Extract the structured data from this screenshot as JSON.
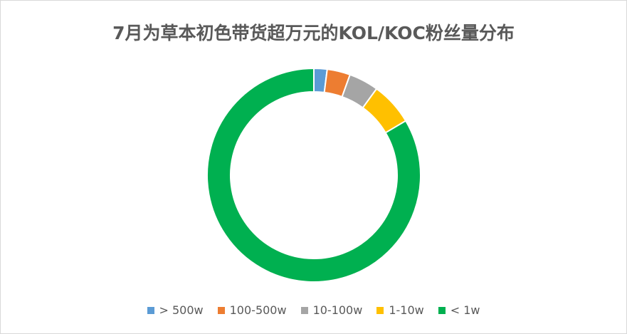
{
  "chart_data": {
    "type": "pie",
    "subtype": "donut",
    "title": "7月为草本初色带货超万元的KOL/KOC粉丝量分布",
    "categories": [
      "> 500w",
      "100-500w",
      "10-100w",
      "1-10w",
      "< 1w"
    ],
    "values": [
      2.0,
      3.5,
      4.5,
      6.5,
      83.5
    ],
    "colors": [
      "#5b9bd5",
      "#ed7d31",
      "#a5a5a5",
      "#ffc000",
      "#00b050"
    ],
    "legend_position": "bottom",
    "start_angle_deg": 0
  }
}
